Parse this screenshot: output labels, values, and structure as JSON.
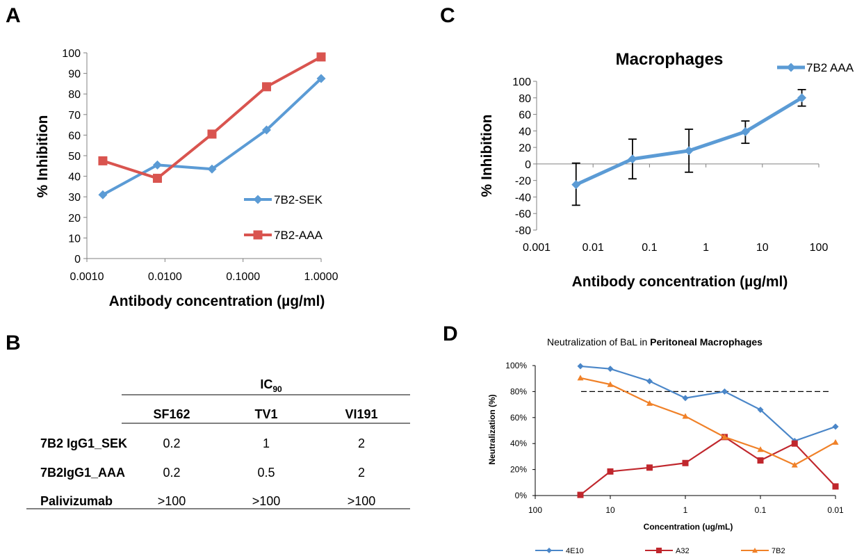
{
  "figure": {
    "panels": [
      {
        "letter": "A"
      },
      {
        "letter": "B"
      },
      {
        "letter": "C"
      },
      {
        "letter": "D"
      }
    ]
  },
  "chart_data": [
    {
      "id": "A",
      "type": "line",
      "title": "",
      "xlabel": "Antibody concentration (µg/ml)",
      "ylabel": "% Inhibition",
      "xscale": "log",
      "xlim": [
        0.001,
        1
      ],
      "ylim": [
        0,
        100
      ],
      "x_tick_labels": [
        "0.0010",
        "0.0100",
        "0.1000",
        "1.0000"
      ],
      "y_tick_labels": [
        "0",
        "10",
        "20",
        "30",
        "40",
        "50",
        "60",
        "70",
        "80",
        "90",
        "100"
      ],
      "legend_position": "right",
      "series": [
        {
          "name": "7B2-SEK",
          "color": "#5b9bd5",
          "marker": "diamond",
          "x": [
            0.0016,
            0.008,
            0.04,
            0.2,
            1.0
          ],
          "values": [
            31,
            45.5,
            43.5,
            62.5,
            87.5
          ]
        },
        {
          "name": "7B2-AAA",
          "color": "#d9544f",
          "marker": "square",
          "x": [
            0.0016,
            0.008,
            0.04,
            0.2,
            1.0
          ],
          "values": [
            47.5,
            39,
            60.5,
            83.5,
            98
          ]
        }
      ]
    },
    {
      "id": "C",
      "type": "line",
      "title": "Macrophages",
      "xlabel": "Antibody concentration (µg/ml)",
      "ylabel": "% Inhibition",
      "xscale": "log",
      "xlim": [
        0.001,
        100
      ],
      "ylim": [
        -80,
        100
      ],
      "x_tick_labels": [
        "0.001",
        "0.01",
        "0.1",
        "1",
        "10",
        "100"
      ],
      "y_tick_labels": [
        "-80",
        "-60",
        "-40",
        "-20",
        "0",
        "20",
        "40",
        "60",
        "80",
        "100"
      ],
      "legend_position": "top-right",
      "series": [
        {
          "name": "7B2 AAA",
          "color": "#5b9bd5",
          "marker": "diamond",
          "x": [
            0.005,
            0.05,
            0.5,
            5,
            50
          ],
          "values": [
            -25,
            6,
            16,
            39,
            80
          ],
          "error_low": [
            -50,
            -18,
            -10,
            25,
            70
          ],
          "error_high": [
            1,
            30,
            42,
            52,
            90
          ]
        }
      ]
    },
    {
      "id": "D",
      "type": "line",
      "title_plain": "Neutralization of BaL in",
      "title_bold": "Peritoneal Macrophages",
      "xlabel": "Concentration (ug/mL)",
      "ylabel": "Neutralization (%)",
      "xscale": "log",
      "x_reversed": true,
      "xlim": [
        100,
        0.01
      ],
      "ylim": [
        0,
        100
      ],
      "x_tick_labels": [
        "100",
        "10",
        "1",
        "0.1",
        "0.01"
      ],
      "y_tick_labels": [
        "0%",
        "20%",
        "40%",
        "60%",
        "80%",
        "100%"
      ],
      "reference_line": 80,
      "legend_position": "bottom",
      "series": [
        {
          "name": "4E10",
          "color": "#4a86c8",
          "marker": "diamond",
          "x": [
            25,
            10,
            3,
            1,
            0.3,
            0.1,
            0.035,
            0.01
          ],
          "values": [
            99.5,
            97.5,
            88,
            75,
            80,
            66,
            42,
            53
          ]
        },
        {
          "name": "A32",
          "color": "#c0272d",
          "marker": "square",
          "x": [
            25,
            10,
            3,
            1,
            0.3,
            0.1,
            0.035,
            0.01
          ],
          "values": [
            0.5,
            18.5,
            21.5,
            25,
            45,
            27,
            40,
            7
          ]
        },
        {
          "name": "7B2",
          "color": "#f08128",
          "marker": "triangle",
          "x": [
            25,
            10,
            3,
            1,
            0.3,
            0.1,
            0.035,
            0.01
          ],
          "values": [
            90.5,
            85.5,
            71,
            61,
            45,
            35.5,
            23.5,
            41
          ]
        }
      ]
    },
    {
      "id": "B",
      "type": "table",
      "header_main": "IC",
      "header_sub": "90",
      "columns": [
        "SF162",
        "TV1",
        "VI191"
      ],
      "rows": [
        {
          "label": "7B2 IgG1_SEK",
          "values": [
            "0.2",
            "1",
            "2"
          ]
        },
        {
          "label": "7B2IgG1_AAA",
          "values": [
            "0.2",
            "0.5",
            "2"
          ]
        },
        {
          "label": "Palivizumab",
          "values": [
            ">100",
            ">100",
            ">100"
          ]
        }
      ]
    }
  ]
}
